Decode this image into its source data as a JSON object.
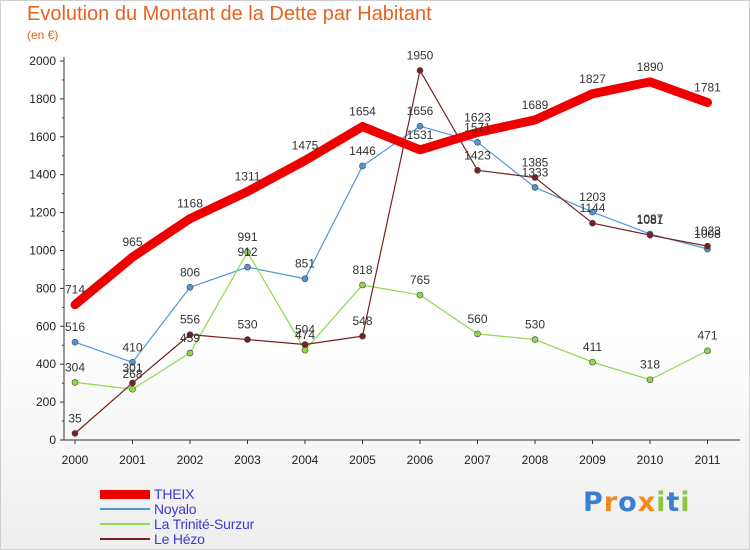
{
  "header": {
    "title": "Evolution du Montant de la Dette par Habitant",
    "unit": "(en €)"
  },
  "chart_data": {
    "type": "line",
    "title": "Evolution du Montant de la Dette par Habitant",
    "subtitle": "(en €)",
    "xlabel": "",
    "ylabel": "",
    "x": [
      "2000",
      "2001",
      "2002",
      "2003",
      "2004",
      "2005",
      "2006",
      "2007",
      "2008",
      "2009",
      "2010",
      "2011"
    ],
    "ylim": [
      0,
      2000
    ],
    "yticks": [
      0,
      200,
      400,
      600,
      800,
      1000,
      1200,
      1400,
      1600,
      1800,
      2000
    ],
    "grid": false,
    "legend": "bottom-left",
    "series": [
      {
        "name": "THEIX",
        "color": "#ee0000",
        "values": [
          714,
          965,
          1168,
          1311,
          1475,
          1654,
          1531,
          1623,
          1689,
          1827,
          1890,
          1781
        ]
      },
      {
        "name": "Noyalo",
        "color": "#4f97d8",
        "values": [
          516,
          410,
          806,
          912,
          851,
          1446,
          1656,
          1571,
          1333,
          1203,
          1087,
          1008
        ]
      },
      {
        "name": "La Trinité-Surzur",
        "color": "#8ed84a",
        "values": [
          304,
          268,
          459,
          991,
          474,
          818,
          765,
          560,
          530,
          411,
          318,
          471
        ]
      },
      {
        "name": "Le Hézo",
        "color": "#7a1f24",
        "values": [
          35,
          301,
          556,
          530,
          504,
          548,
          1950,
          1423,
          1385,
          1144,
          1081,
          1023
        ]
      }
    ]
  },
  "logo": {
    "letters": [
      "P",
      "r",
      "o",
      "x",
      "i",
      "t",
      "i"
    ],
    "colors": [
      "#3a7fd0",
      "#f08a1c",
      "#3a7fd0",
      "#f08a1c",
      "#8cc63f",
      "#3a7fd0",
      "#8cc63f"
    ]
  }
}
